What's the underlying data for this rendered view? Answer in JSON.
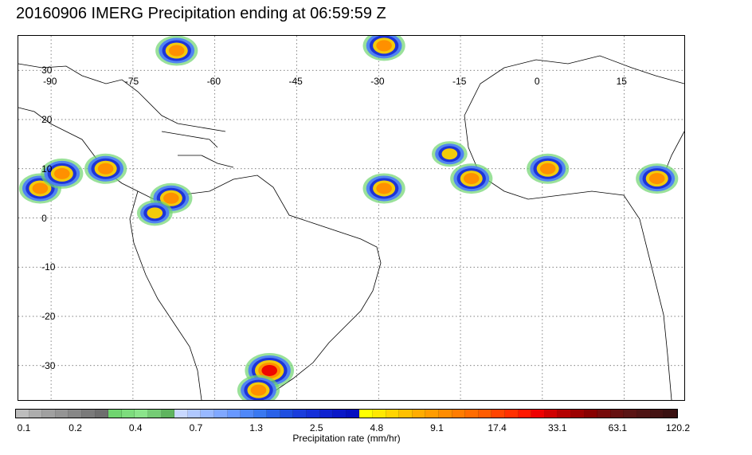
{
  "title": "20160906 IMERG Precipitation ending at 06:59:59 Z",
  "map": {
    "lon_labels": [
      "-90",
      "-75",
      "-60",
      "-45",
      "-30",
      "-15",
      "0",
      "15"
    ],
    "lat_labels": [
      "30",
      "20",
      "10",
      "0",
      "-10",
      "-20",
      "-30"
    ],
    "gridline_style": "dotted",
    "precip_cells": [
      {
        "lon": -80,
        "lat": 10,
        "level": "orange"
      },
      {
        "lon": -68,
        "lat": 4,
        "level": "orange"
      },
      {
        "lon": -71,
        "lat": 1,
        "level": "yellow"
      },
      {
        "lon": -29,
        "lat": 6,
        "level": "orange"
      },
      {
        "lon": -29,
        "lat": 35,
        "level": "orange"
      },
      {
        "lon": -17,
        "lat": 13,
        "level": "yellow"
      },
      {
        "lon": -13,
        "lat": 8,
        "level": "orange"
      },
      {
        "lon": -50,
        "lat": -31,
        "level": "red"
      },
      {
        "lon": -52,
        "lat": -35,
        "level": "orange"
      },
      {
        "lon": 21,
        "lat": 8,
        "level": "orange"
      },
      {
        "lon": -92,
        "lat": 6,
        "level": "orange"
      },
      {
        "lon": -88,
        "lat": 9,
        "level": "orange"
      },
      {
        "lon": -67,
        "lat": 34,
        "level": "orange"
      },
      {
        "lon": 1,
        "lat": 10,
        "level": "orange"
      }
    ]
  },
  "colorbar": {
    "colors": [
      "#bdbdbd",
      "#adadad",
      "#a0a0a0",
      "#949494",
      "#878787",
      "#7a7a7a",
      "#6e6e6e",
      "#6fd46f",
      "#7ddc7d",
      "#8be48b",
      "#75cc75",
      "#5fb45f",
      "#c8d8ff",
      "#b0c8ff",
      "#98b8ff",
      "#80a8ff",
      "#6898ff",
      "#5088f8",
      "#3a78f0",
      "#2a62e8",
      "#1f4fe0",
      "#1a3ddc",
      "#1530d8",
      "#0f22d0",
      "#0a18c8",
      "#0610c0",
      "#ffff00",
      "#ffe800",
      "#ffd400",
      "#ffc000",
      "#ffac00",
      "#ff9c00",
      "#ff8c00",
      "#ff7c00",
      "#ff6c00",
      "#ff5c00",
      "#ff4400",
      "#ff3000",
      "#ff1800",
      "#ee0000",
      "#d00000",
      "#b40000",
      "#9c0000",
      "#880000",
      "#760a0a",
      "#661010",
      "#5a1414",
      "#4e1414",
      "#441212",
      "#3a1010"
    ],
    "labels": [
      "0.1",
      "0.2",
      "0.4",
      "0.7",
      "1.3",
      "2.5",
      "4.8",
      "9.1",
      "17.4",
      "33.1",
      "63.1",
      "120.2"
    ],
    "title": "Precipitation rate (mm/hr)"
  }
}
